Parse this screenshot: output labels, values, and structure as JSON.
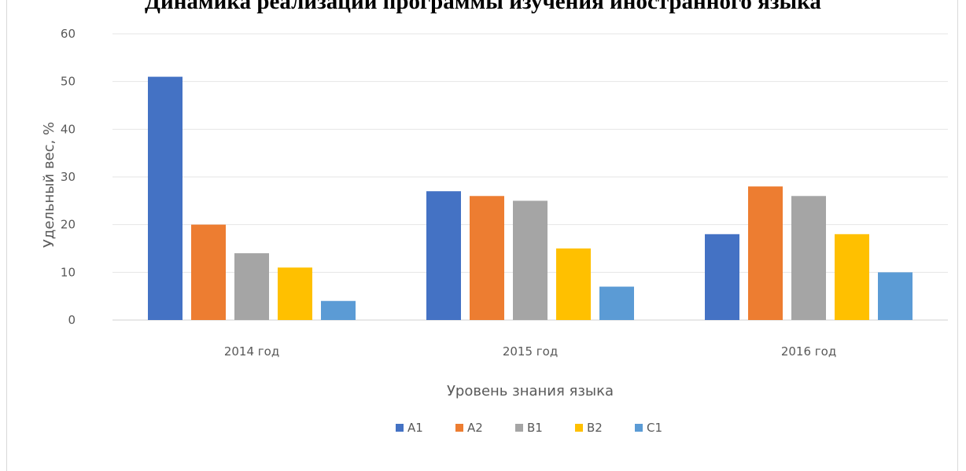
{
  "chart_data": {
    "type": "bar",
    "title": "Динамика реализации программы изучения иностранного языка",
    "xlabel": "Уровень знания языка",
    "ylabel": "Удельный вес, %",
    "categories": [
      "2014 год",
      "2015 год",
      "2016 год"
    ],
    "series": [
      {
        "name": "A1",
        "color": "#4472c4",
        "values": [
          51,
          27,
          18
        ]
      },
      {
        "name": "A2",
        "color": "#ed7d31",
        "values": [
          20,
          26,
          28
        ]
      },
      {
        "name": "B1",
        "color": "#a5a5a5",
        "values": [
          14,
          25,
          26
        ]
      },
      {
        "name": "B2",
        "color": "#ffc000",
        "values": [
          11,
          15,
          18
        ]
      },
      {
        "name": "C1",
        "color": "#5b9bd5",
        "values": [
          4,
          7,
          10
        ]
      }
    ],
    "ylim": [
      0,
      60
    ],
    "yticks": [
      0,
      10,
      20,
      30,
      40,
      50,
      60
    ],
    "grid": true,
    "legend_position": "bottom"
  }
}
